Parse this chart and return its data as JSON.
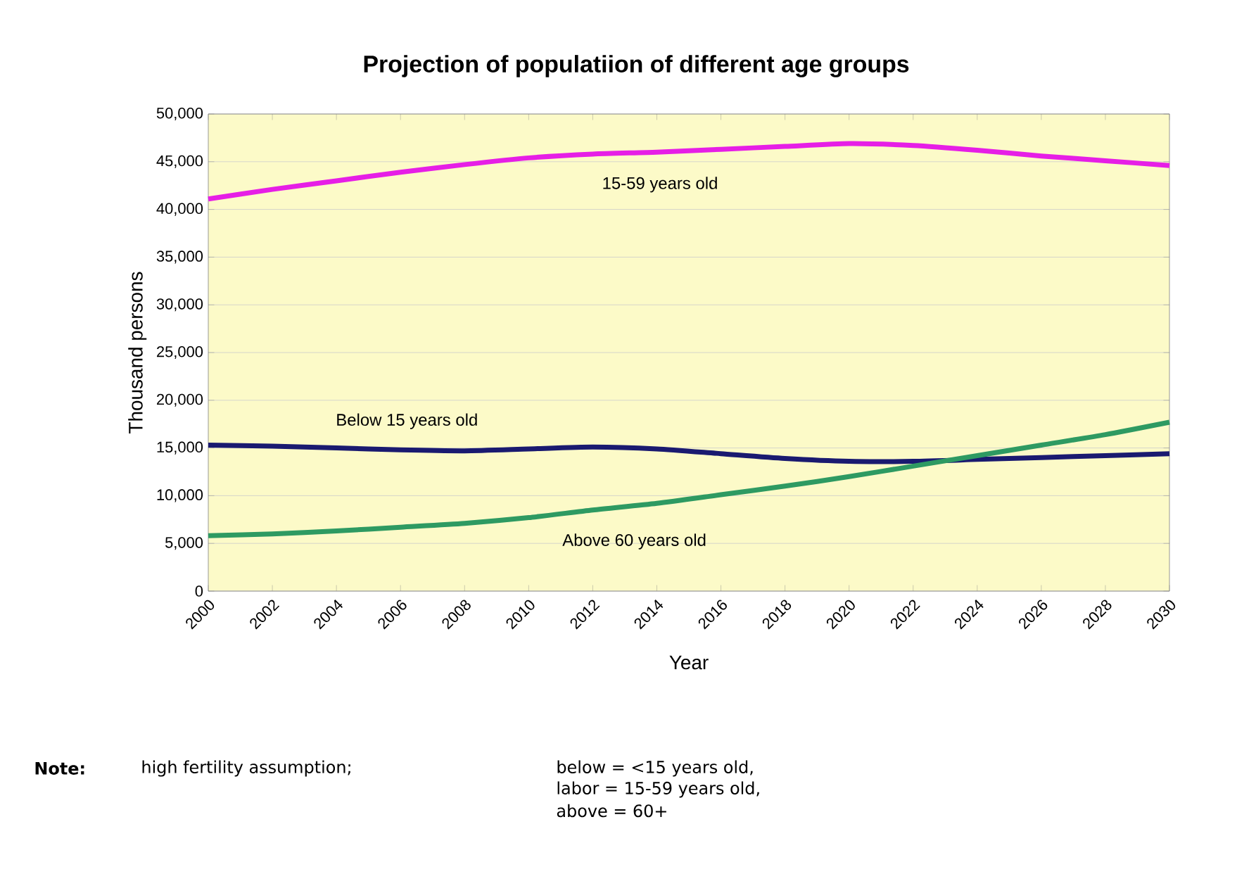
{
  "chart_data": {
    "type": "line",
    "title": "Projection of populatiion of different age groups",
    "xlabel": "Year",
    "ylabel": "Thousand persons",
    "x": [
      2000,
      2002,
      2004,
      2006,
      2008,
      2010,
      2012,
      2014,
      2016,
      2018,
      2020,
      2022,
      2024,
      2026,
      2028,
      2030
    ],
    "series": [
      {
        "name": "15-59 years old",
        "color": "#e61ee6",
        "values": [
          41100,
          42100,
          43000,
          43900,
          44700,
          45400,
          45800,
          46000,
          46300,
          46600,
          46900,
          46700,
          46200,
          45600,
          45100,
          44600
        ]
      },
      {
        "name": "Below 15 years old",
        "color": "#1a1a70",
        "values": [
          15300,
          15200,
          15000,
          14800,
          14700,
          14900,
          15100,
          14900,
          14400,
          13900,
          13600,
          13600,
          13800,
          14000,
          14200,
          14400
        ]
      },
      {
        "name": "Above 60 years old",
        "color": "#2e9a62",
        "values": [
          5800,
          6000,
          6300,
          6700,
          7100,
          7700,
          8500,
          9200,
          10100,
          11000,
          12000,
          13100,
          14200,
          15300,
          16400,
          17700
        ]
      }
    ],
    "xlim": [
      2000,
      2030
    ],
    "ylim": [
      0,
      50000
    ],
    "xticks": [
      2000,
      2002,
      2004,
      2006,
      2008,
      2010,
      2012,
      2014,
      2016,
      2018,
      2020,
      2022,
      2024,
      2026,
      2028,
      2030
    ],
    "yticks": [
      {
        "value": 0,
        "label": "0"
      },
      {
        "value": 5000,
        "label": "5,000"
      },
      {
        "value": 10000,
        "label": "10,000"
      },
      {
        "value": 15000,
        "label": "15,000"
      },
      {
        "value": 20000,
        "label": "20,000"
      },
      {
        "value": 25000,
        "label": "25,000"
      },
      {
        "value": 30000,
        "label": "30,000"
      },
      {
        "value": 35000,
        "label": "35,000"
      },
      {
        "value": 40000,
        "label": "40,000"
      },
      {
        "value": 45000,
        "label": "45,000"
      },
      {
        "value": 50000,
        "label": "50,000"
      }
    ],
    "grid": "y",
    "legend": false,
    "marker": "none",
    "line_style": "solid",
    "annotations": [
      "**Note:**",
      "high fertility assumption;",
      "below = <15 years old,",
      "labor = 15-59 years old,",
      "above = 60+"
    ]
  }
}
